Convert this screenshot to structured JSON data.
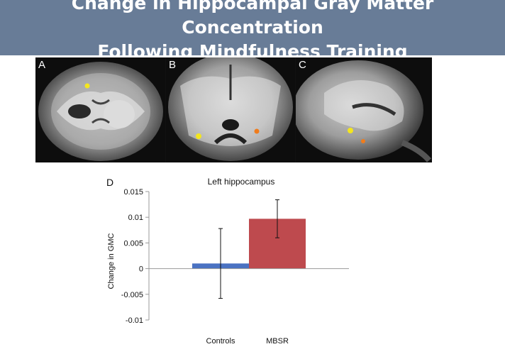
{
  "slide": {
    "title_line1": "Change in Hippocampal Gray Matter Concentration",
    "title_line2": "Following Mindfulness Training"
  },
  "mri": {
    "panels": [
      {
        "letter": "A"
      },
      {
        "letter": "B"
      },
      {
        "letter": "C"
      }
    ],
    "highlight_colors": {
      "yellow": "#f4e61e",
      "orange": "#f07c1c"
    }
  },
  "chart_data": {
    "type": "bar",
    "panel_label": "D",
    "title": "Left hippocampus",
    "xlabel": "",
    "ylabel": "Change in GMC",
    "categories": [
      "Controls",
      "MBSR"
    ],
    "values": [
      0.001,
      0.0097
    ],
    "error": [
      0.0068,
      0.0037
    ],
    "colors": [
      "#4a72c2",
      "#be4a4e"
    ],
    "ylim": [
      -0.01,
      0.015
    ],
    "yticks": [
      0.015,
      0.01,
      0.005,
      0,
      -0.005,
      -0.01
    ],
    "ytick_labels": [
      "0.015",
      "0.01",
      "0.005",
      "0",
      "-0.005",
      "-0.01"
    ],
    "grid": false
  }
}
